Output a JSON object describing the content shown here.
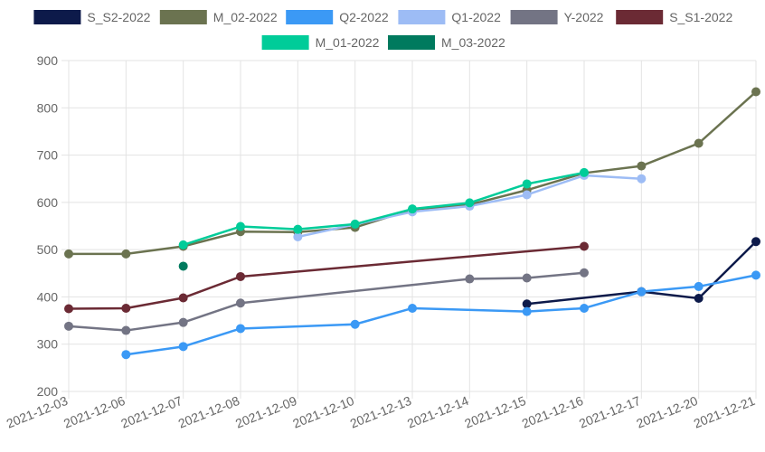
{
  "chart_data": {
    "type": "line",
    "title": "",
    "xlabel": "",
    "ylabel": "",
    "ylim": [
      200,
      900
    ],
    "yticks": [
      200,
      300,
      400,
      500,
      600,
      700,
      800,
      900
    ],
    "grid": true,
    "legend_position": "top",
    "categories": [
      "2021-12-03",
      "2021-12-06",
      "2021-12-07",
      "2021-12-08",
      "2021-12-09",
      "2021-12-10",
      "2021-12-13",
      "2021-12-14",
      "2021-12-15",
      "2021-12-16",
      "2021-12-17",
      "2021-12-20",
      "2021-12-21"
    ],
    "series": [
      {
        "name": "S_S2-2022",
        "color": "#0d1a4a",
        "values": [
          null,
          null,
          null,
          null,
          null,
          null,
          null,
          null,
          385,
          null,
          411,
          397,
          517
        ]
      },
      {
        "name": "M_02-2022",
        "color": "#6b7350",
        "values": [
          491,
          491,
          507,
          538,
          537,
          547,
          585,
          595,
          626,
          662,
          677,
          725,
          834
        ]
      },
      {
        "name": "Q2-2022",
        "color": "#3b99f5",
        "values": [
          null,
          278,
          295,
          333,
          null,
          342,
          376,
          null,
          369,
          376,
          411,
          422,
          446
        ]
      },
      {
        "name": "Q1-2022",
        "color": "#9dbcf5",
        "values": [
          null,
          null,
          null,
          null,
          527,
          null,
          580,
          592,
          616,
          657,
          650,
          null,
          null
        ]
      },
      {
        "name": "Y-2022",
        "color": "#737484",
        "values": [
          338,
          329,
          346,
          387,
          null,
          null,
          null,
          438,
          440,
          451,
          null,
          null,
          null
        ]
      },
      {
        "name": "S_S1-2022",
        "color": "#6b2a34",
        "values": [
          375,
          376,
          398,
          443,
          null,
          null,
          null,
          null,
          null,
          507,
          null,
          null,
          null
        ]
      },
      {
        "name": "M_01-2022",
        "color": "#00cc99",
        "values": [
          null,
          null,
          510,
          549,
          543,
          554,
          586,
          599,
          639,
          663,
          null,
          null,
          null
        ]
      },
      {
        "name": "M_03-2022",
        "color": "#007a5e",
        "values": [
          null,
          null,
          465,
          null,
          null,
          null,
          null,
          null,
          null,
          null,
          null,
          null,
          null
        ]
      }
    ]
  }
}
